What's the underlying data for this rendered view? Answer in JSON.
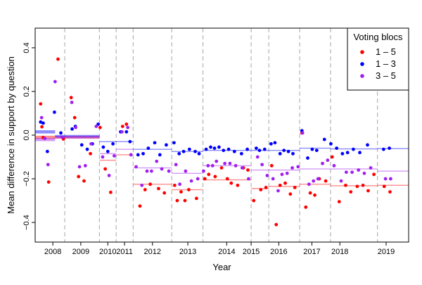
{
  "chart_data": {
    "type": "scatter",
    "xlabel": "Year",
    "ylabel": "Mean difference in support by question",
    "xlim": [
      2008.0,
      2019.62
    ],
    "ylim": [
      -0.49,
      0.49
    ],
    "y_ticks": [
      -0.4,
      -0.2,
      0.0,
      0.2,
      0.4
    ],
    "y_tick_labels": [
      "−0.4",
      "−0.2",
      "0.0",
      "0.2",
      "0.4"
    ],
    "year_ticks": [
      {
        "label": "2008",
        "x": 2008.55
      },
      {
        "label": "2009",
        "x": 2009.42
      },
      {
        "label": "2010",
        "x": 2010.26
      },
      {
        "label": "2011",
        "x": 2010.78
      },
      {
        "label": "2012",
        "x": 2011.65
      },
      {
        "label": "2013",
        "x": 2012.75
      },
      {
        "label": "2014",
        "x": 2013.96
      },
      {
        "label": "2015",
        "x": 2014.72
      },
      {
        "label": "2016",
        "x": 2015.58
      },
      {
        "label": "2017",
        "x": 2016.61
      },
      {
        "label": "2018",
        "x": 2017.48
      },
      {
        "label": "2019",
        "x": 2018.92
      }
    ],
    "period_boundaries": [
      2008.92,
      2010.0,
      2010.52,
      2011.05,
      2012.25,
      2013.22,
      2014.72,
      2015.27,
      2016.23,
      2017.19,
      2018.65
    ],
    "legend": {
      "title": "Voting blocs",
      "placement": "top-right",
      "entries": [
        "1 – 5",
        "1 – 3",
        "3 – 5"
      ]
    },
    "series": [
      {
        "name": "1 – 5",
        "color": "#ff0000",
        "points": [
          [
            2008.17,
            0.143
          ],
          [
            2008.21,
            0.038
          ],
          [
            2008.25,
            -0.011
          ],
          [
            2008.42,
            -0.215
          ],
          [
            2008.71,
            0.348
          ],
          [
            2008.88,
            -0.018
          ],
          [
            2009.12,
            0.172
          ],
          [
            2009.23,
            0.08
          ],
          [
            2009.35,
            -0.19
          ],
          [
            2009.52,
            -0.21
          ],
          [
            2009.72,
            -0.085
          ],
          [
            2010.02,
            0.035
          ],
          [
            2010.18,
            -0.155
          ],
          [
            2010.35,
            -0.262
          ],
          [
            2010.72,
            0.04
          ],
          [
            2010.84,
            0.05
          ],
          [
            2011.26,
            -0.325
          ],
          [
            2011.42,
            -0.25
          ],
          [
            2011.58,
            -0.225
          ],
          [
            2011.84,
            -0.245
          ],
          [
            2012.02,
            -0.265
          ],
          [
            2012.34,
            -0.23
          ],
          [
            2012.42,
            -0.3
          ],
          [
            2012.54,
            -0.26
          ],
          [
            2012.66,
            -0.3
          ],
          [
            2012.78,
            -0.25
          ],
          [
            2013.02,
            -0.29
          ],
          [
            2013.28,
            -0.2
          ],
          [
            2013.4,
            -0.18
          ],
          [
            2013.6,
            -0.19
          ],
          [
            2013.8,
            -0.15
          ],
          [
            2013.98,
            -0.2
          ],
          [
            2014.1,
            -0.22
          ],
          [
            2014.3,
            -0.23
          ],
          [
            2014.48,
            -0.15
          ],
          [
            2014.62,
            -0.16
          ],
          [
            2014.8,
            -0.3
          ],
          [
            2015.02,
            -0.25
          ],
          [
            2015.18,
            -0.24
          ],
          [
            2015.36,
            -0.14
          ],
          [
            2015.5,
            -0.41
          ],
          [
            2015.62,
            -0.23
          ],
          [
            2015.78,
            -0.22
          ],
          [
            2015.94,
            -0.27
          ],
          [
            2016.08,
            -0.24
          ],
          [
            2016.3,
            0.01
          ],
          [
            2016.42,
            -0.33
          ],
          [
            2016.56,
            -0.265
          ],
          [
            2016.7,
            -0.275
          ],
          [
            2016.84,
            -0.2
          ],
          [
            2017.04,
            -0.21
          ],
          [
            2017.24,
            -0.1
          ],
          [
            2017.46,
            -0.305
          ],
          [
            2017.66,
            -0.23
          ],
          [
            2017.82,
            -0.26
          ],
          [
            2018.02,
            -0.235
          ],
          [
            2018.2,
            -0.23
          ],
          [
            2018.36,
            -0.255
          ],
          [
            2018.54,
            -0.18
          ],
          [
            2018.86,
            -0.235
          ],
          [
            2019.04,
            -0.26
          ]
        ],
        "period_means": [
          {
            "x0": 2008.0,
            "x1": 2008.62,
            "y": -0.01
          },
          {
            "x0": 2008.62,
            "x1": 2010.0,
            "y": -0.01
          },
          {
            "x0": 2010.0,
            "x1": 2010.52,
            "y": -0.115
          },
          {
            "x0": 2010.52,
            "x1": 2011.05,
            "y": -0.09
          },
          {
            "x0": 2011.05,
            "x1": 2012.25,
            "y": -0.225
          },
          {
            "x0": 2012.25,
            "x1": 2013.22,
            "y": -0.25
          },
          {
            "x0": 2013.22,
            "x1": 2014.72,
            "y": -0.205
          },
          {
            "x0": 2014.72,
            "x1": 2015.27,
            "y": -0.245
          },
          {
            "x0": 2015.27,
            "x1": 2016.23,
            "y": -0.235
          },
          {
            "x0": 2016.23,
            "x1": 2017.19,
            "y": -0.225
          },
          {
            "x0": 2017.19,
            "x1": 2018.65,
            "y": -0.232
          },
          {
            "x0": 2018.65,
            "x1": 2019.62,
            "y": -0.23
          }
        ]
      },
      {
        "name": "1 – 3",
        "color": "#0000ff",
        "points": [
          [
            2008.17,
            0.06
          ],
          [
            2008.25,
            0.055
          ],
          [
            2008.38,
            -0.075
          ],
          [
            2008.6,
            0.105
          ],
          [
            2008.8,
            0.01
          ],
          [
            2009.15,
            0.028
          ],
          [
            2009.25,
            0.04
          ],
          [
            2009.45,
            -0.045
          ],
          [
            2009.62,
            -0.065
          ],
          [
            2009.78,
            -0.04
          ],
          [
            2009.96,
            0.05
          ],
          [
            2010.12,
            -0.055
          ],
          [
            2010.26,
            -0.075
          ],
          [
            2010.42,
            -0.04
          ],
          [
            2010.66,
            0.015
          ],
          [
            2010.84,
            0.015
          ],
          [
            2010.95,
            -0.03
          ],
          [
            2011.2,
            -0.09
          ],
          [
            2011.36,
            -0.085
          ],
          [
            2011.52,
            -0.06
          ],
          [
            2011.72,
            -0.035
          ],
          [
            2011.88,
            -0.09
          ],
          [
            2012.08,
            -0.045
          ],
          [
            2012.32,
            -0.035
          ],
          [
            2012.48,
            -0.085
          ],
          [
            2012.62,
            -0.075
          ],
          [
            2012.8,
            -0.065
          ],
          [
            2012.98,
            -0.075
          ],
          [
            2013.1,
            -0.085
          ],
          [
            2013.32,
            -0.065
          ],
          [
            2013.46,
            -0.055
          ],
          [
            2013.58,
            -0.06
          ],
          [
            2013.72,
            -0.055
          ],
          [
            2013.86,
            -0.07
          ],
          [
            2014.02,
            -0.065
          ],
          [
            2014.2,
            -0.075
          ],
          [
            2014.42,
            -0.085
          ],
          [
            2014.6,
            -0.065
          ],
          [
            2014.88,
            -0.06
          ],
          [
            2014.98,
            -0.07
          ],
          [
            2015.14,
            -0.065
          ],
          [
            2015.34,
            -0.04
          ],
          [
            2015.46,
            -0.035
          ],
          [
            2015.62,
            -0.085
          ],
          [
            2015.74,
            -0.07
          ],
          [
            2015.88,
            -0.075
          ],
          [
            2016.02,
            -0.085
          ],
          [
            2016.3,
            0.02
          ],
          [
            2016.48,
            -0.105
          ],
          [
            2016.62,
            -0.065
          ],
          [
            2016.76,
            -0.07
          ],
          [
            2017.0,
            -0.02
          ],
          [
            2017.2,
            -0.04
          ],
          [
            2017.38,
            -0.06
          ],
          [
            2017.56,
            -0.085
          ],
          [
            2017.72,
            -0.08
          ],
          [
            2017.9,
            -0.065
          ],
          [
            2018.1,
            -0.08
          ],
          [
            2018.34,
            -0.045
          ],
          [
            2018.84,
            -0.065
          ],
          [
            2019.02,
            -0.06
          ]
        ],
        "period_means": [
          {
            "x0": 2008.0,
            "x1": 2008.62,
            "y": 0.015
          },
          {
            "x0": 2008.62,
            "x1": 2010.0,
            "y": -0.005
          },
          {
            "x0": 2010.0,
            "x1": 2010.52,
            "y": -0.03
          },
          {
            "x0": 2010.52,
            "x1": 2011.05,
            "y": -0.03
          },
          {
            "x0": 2011.05,
            "x1": 2012.25,
            "y": -0.065
          },
          {
            "x0": 2012.25,
            "x1": 2013.22,
            "y": -0.075
          },
          {
            "x0": 2013.22,
            "x1": 2014.72,
            "y": -0.07
          },
          {
            "x0": 2014.72,
            "x1": 2015.27,
            "y": -0.07
          },
          {
            "x0": 2015.27,
            "x1": 2016.23,
            "y": -0.07
          },
          {
            "x0": 2016.23,
            "x1": 2017.19,
            "y": -0.06
          },
          {
            "x0": 2017.19,
            "x1": 2018.65,
            "y": -0.063
          },
          {
            "x0": 2018.65,
            "x1": 2019.62,
            "y": -0.062
          }
        ]
      },
      {
        "name": "3 – 5",
        "color": "#a020f0",
        "points": [
          [
            2008.2,
            0.08
          ],
          [
            2008.3,
            -0.015
          ],
          [
            2008.4,
            -0.135
          ],
          [
            2008.62,
            0.245
          ],
          [
            2008.84,
            -0.01
          ],
          [
            2009.14,
            0.15
          ],
          [
            2009.26,
            0.035
          ],
          [
            2009.38,
            -0.145
          ],
          [
            2009.56,
            -0.14
          ],
          [
            2009.74,
            -0.04
          ],
          [
            2009.9,
            0.04
          ],
          [
            2010.1,
            -0.1
          ],
          [
            2010.3,
            -0.185
          ],
          [
            2010.46,
            -0.095
          ],
          [
            2010.7,
            0.015
          ],
          [
            2010.88,
            0.035
          ],
          [
            2010.98,
            -0.09
          ],
          [
            2011.14,
            -0.145
          ],
          [
            2011.32,
            -0.23
          ],
          [
            2011.48,
            -0.165
          ],
          [
            2011.62,
            -0.165
          ],
          [
            2011.78,
            -0.12
          ],
          [
            2011.94,
            -0.155
          ],
          [
            2012.16,
            -0.165
          ],
          [
            2012.38,
            -0.135
          ],
          [
            2012.5,
            -0.225
          ],
          [
            2012.68,
            -0.165
          ],
          [
            2012.86,
            -0.21
          ],
          [
            2013.06,
            -0.2
          ],
          [
            2013.24,
            -0.165
          ],
          [
            2013.38,
            -0.14
          ],
          [
            2013.52,
            -0.14
          ],
          [
            2013.64,
            -0.12
          ],
          [
            2013.9,
            -0.13
          ],
          [
            2014.06,
            -0.13
          ],
          [
            2014.24,
            -0.14
          ],
          [
            2014.44,
            -0.15
          ],
          [
            2014.64,
            -0.2
          ],
          [
            2014.92,
            -0.1
          ],
          [
            2015.06,
            -0.135
          ],
          [
            2015.22,
            -0.185
          ],
          [
            2015.4,
            -0.2
          ],
          [
            2015.56,
            -0.255
          ],
          [
            2015.68,
            -0.18
          ],
          [
            2015.84,
            -0.175
          ],
          [
            2016.0,
            -0.15
          ],
          [
            2016.18,
            -0.145
          ],
          [
            2016.32,
            0.01
          ],
          [
            2016.52,
            -0.225
          ],
          [
            2016.66,
            -0.21
          ],
          [
            2016.8,
            -0.2
          ],
          [
            2016.94,
            -0.13
          ],
          [
            2017.1,
            -0.115
          ],
          [
            2017.3,
            -0.14
          ],
          [
            2017.52,
            -0.21
          ],
          [
            2017.68,
            -0.17
          ],
          [
            2017.86,
            -0.17
          ],
          [
            2018.06,
            -0.16
          ],
          [
            2018.24,
            -0.175
          ],
          [
            2018.44,
            -0.15
          ],
          [
            2018.9,
            -0.2
          ],
          [
            2019.06,
            -0.2
          ]
        ],
        "period_means": [
          {
            "x0": 2008.0,
            "x1": 2008.62,
            "y": -0.02
          },
          {
            "x0": 2008.62,
            "x1": 2010.0,
            "y": -0.01
          },
          {
            "x0": 2010.0,
            "x1": 2010.52,
            "y": -0.085
          },
          {
            "x0": 2010.52,
            "x1": 2011.05,
            "y": -0.065
          },
          {
            "x0": 2011.05,
            "x1": 2012.25,
            "y": -0.15
          },
          {
            "x0": 2012.25,
            "x1": 2013.22,
            "y": -0.175
          },
          {
            "x0": 2013.22,
            "x1": 2014.72,
            "y": -0.14
          },
          {
            "x0": 2014.72,
            "x1": 2015.27,
            "y": -0.16
          },
          {
            "x0": 2015.27,
            "x1": 2016.23,
            "y": -0.16
          },
          {
            "x0": 2016.23,
            "x1": 2017.19,
            "y": -0.155
          },
          {
            "x0": 2017.19,
            "x1": 2018.65,
            "y": -0.155
          },
          {
            "x0": 2018.65,
            "x1": 2019.62,
            "y": -0.165
          }
        ]
      }
    ]
  }
}
